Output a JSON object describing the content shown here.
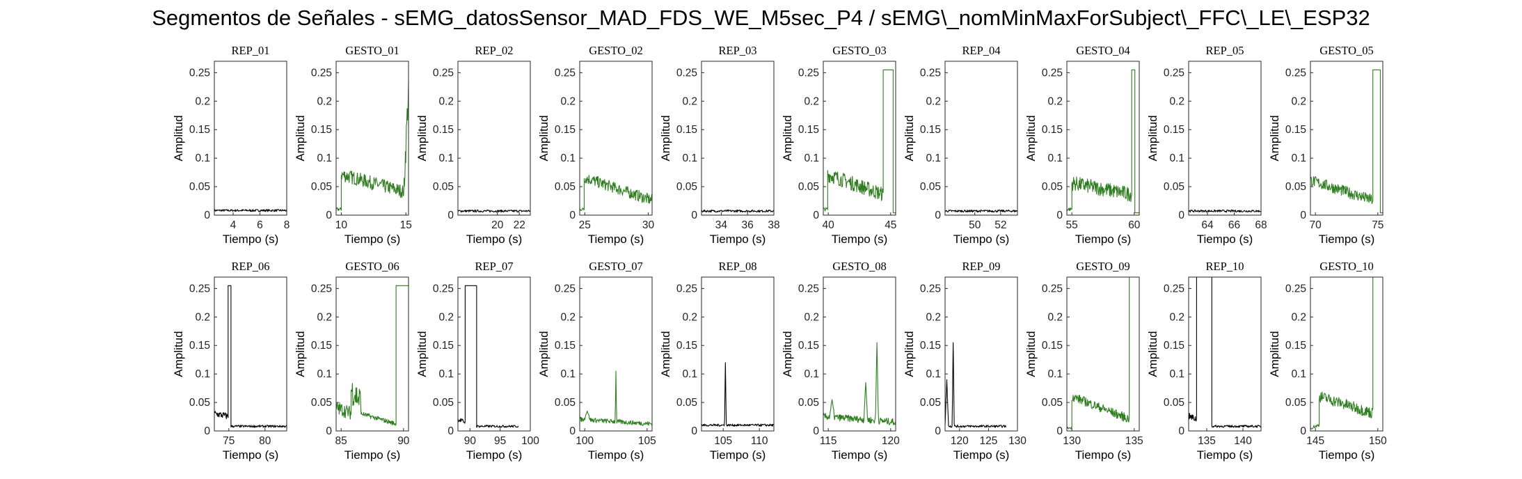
{
  "figure_title": "Segmentos de Señales - sEMG_datosSensor_MAD_FDS_WE_M5sec_P4 / sEMG\\_nomMinMaxForSubject\\_FFC\\_LE\\_ESP32",
  "colors": {
    "rep": "#000000",
    "gesto": "#2e7d1f",
    "axes": "#262626"
  },
  "chart_data": [
    {
      "type": "line",
      "title": "REP_01",
      "xlabel": "Tiempo (s)",
      "ylabel": "Amplitud",
      "xlim": [
        2.6,
        8
      ],
      "ylim": [
        0,
        0.27
      ],
      "xticks": [
        4,
        6,
        8
      ],
      "yticks": [
        0,
        0.05,
        0.1,
        0.15,
        0.2,
        0.25
      ],
      "color": "rep",
      "kind": "flat",
      "segments": [
        {
          "x0": 2.6,
          "x1": 8,
          "level": 0.008,
          "noise": 0.002
        }
      ]
    },
    {
      "type": "line",
      "title": "GESTO_01",
      "xlabel": "Tiempo (s)",
      "ylabel": "Amplitud",
      "xlim": [
        9.6,
        15.2
      ],
      "ylim": [
        0,
        0.27
      ],
      "xticks": [
        10,
        15
      ],
      "yticks": [
        0,
        0.05,
        0.1,
        0.15,
        0.2,
        0.25
      ],
      "color": "gesto",
      "kind": "emg",
      "segments": [
        {
          "x0": 9.6,
          "x1": 10.0,
          "level": 0.01,
          "noise": 0.003
        },
        {
          "x0": 10.0,
          "x1": 14.85,
          "start": 0.07,
          "end": 0.04,
          "noise": 0.012
        },
        {
          "x0": 14.85,
          "x1": 15.2,
          "start": 0.05,
          "end": 0.22,
          "noise": 0.03
        }
      ]
    },
    {
      "type": "line",
      "title": "REP_02",
      "xlabel": "Tiempo (s)",
      "ylabel": "Amplitud",
      "xlim": [
        16.4,
        23
      ],
      "ylim": [
        0,
        0.27
      ],
      "xticks": [
        20,
        22
      ],
      "yticks": [
        0,
        0.05,
        0.1,
        0.15,
        0.2,
        0.25
      ],
      "color": "rep",
      "kind": "flat",
      "segments": [
        {
          "x0": 16.4,
          "x1": 23,
          "level": 0.007,
          "noise": 0.002
        }
      ]
    },
    {
      "type": "line",
      "title": "GESTO_02",
      "xlabel": "Tiempo (s)",
      "ylabel": "Amplitud",
      "xlim": [
        24.6,
        30.3
      ],
      "ylim": [
        0,
        0.27
      ],
      "xticks": [
        25,
        30
      ],
      "yticks": [
        0,
        0.05,
        0.1,
        0.15,
        0.2,
        0.25
      ],
      "color": "gesto",
      "kind": "emg",
      "segments": [
        {
          "x0": 24.6,
          "x1": 24.95,
          "level": 0.01,
          "noise": 0.003
        },
        {
          "x0": 24.95,
          "x1": 30.3,
          "start": 0.065,
          "end": 0.025,
          "noise": 0.01
        }
      ]
    },
    {
      "type": "line",
      "title": "REP_03",
      "xlabel": "Tiempo (s)",
      "ylabel": "Amplitud",
      "xlim": [
        32.5,
        38
      ],
      "ylim": [
        0,
        0.27
      ],
      "xticks": [
        34,
        36,
        38
      ],
      "yticks": [
        0,
        0.05,
        0.1,
        0.15,
        0.2,
        0.25
      ],
      "color": "rep",
      "kind": "flat",
      "segments": [
        {
          "x0": 32.5,
          "x1": 38,
          "level": 0.007,
          "noise": 0.002
        }
      ]
    },
    {
      "type": "line",
      "title": "GESTO_03",
      "xlabel": "Tiempo (s)",
      "ylabel": "Amplitud",
      "xlim": [
        39.6,
        45.4
      ],
      "ylim": [
        0,
        0.27
      ],
      "xticks": [
        40,
        45
      ],
      "yticks": [
        0,
        0.05,
        0.1,
        0.15,
        0.2,
        0.25
      ],
      "color": "gesto",
      "kind": "emg",
      "segments": [
        {
          "x0": 39.6,
          "x1": 39.95,
          "level": 0.01,
          "noise": 0.003
        },
        {
          "x0": 39.95,
          "x1": 44.4,
          "start": 0.07,
          "end": 0.035,
          "noise": 0.013
        },
        {
          "x0": 44.4,
          "x1": 45.2,
          "level": 0.255,
          "noise": 0
        },
        {
          "x0": 45.2,
          "x1": 45.4,
          "level": 0.004,
          "noise": 0
        }
      ]
    },
    {
      "type": "line",
      "title": "REP_04",
      "xlabel": "Tiempo (s)",
      "ylabel": "Amplitud",
      "xlim": [
        47.7,
        53.3
      ],
      "ylim": [
        0,
        0.27
      ],
      "xticks": [
        50,
        52
      ],
      "yticks": [
        0,
        0.05,
        0.1,
        0.15,
        0.2,
        0.25
      ],
      "color": "rep",
      "kind": "flat",
      "segments": [
        {
          "x0": 47.7,
          "x1": 53.3,
          "level": 0.007,
          "noise": 0.002
        }
      ]
    },
    {
      "type": "line",
      "title": "GESTO_04",
      "xlabel": "Tiempo (s)",
      "ylabel": "Amplitud",
      "xlim": [
        54.6,
        60.4
      ],
      "ylim": [
        0,
        0.27
      ],
      "xticks": [
        55,
        60
      ],
      "yticks": [
        0,
        0.05,
        0.1,
        0.15,
        0.2,
        0.25
      ],
      "color": "gesto",
      "kind": "emg",
      "segments": [
        {
          "x0": 54.6,
          "x1": 55.0,
          "level": 0.01,
          "noise": 0.003
        },
        {
          "x0": 55.0,
          "x1": 59.8,
          "start": 0.055,
          "end": 0.035,
          "noise": 0.013
        },
        {
          "x0": 59.8,
          "x1": 60.05,
          "level": 0.255,
          "noise": 0
        },
        {
          "x0": 60.05,
          "x1": 60.4,
          "level": 0.004,
          "noise": 0
        }
      ]
    },
    {
      "type": "line",
      "title": "REP_05",
      "xlabel": "Tiempo (s)",
      "ylabel": "Amplitud",
      "xlim": [
        62.6,
        68
      ],
      "ylim": [
        0,
        0.27
      ],
      "xticks": [
        64,
        66,
        68
      ],
      "yticks": [
        0,
        0.05,
        0.1,
        0.15,
        0.2,
        0.25
      ],
      "color": "rep",
      "kind": "flat",
      "segments": [
        {
          "x0": 62.6,
          "x1": 68,
          "level": 0.007,
          "noise": 0.002
        }
      ]
    },
    {
      "type": "line",
      "title": "GESTO_05",
      "xlabel": "Tiempo (s)",
      "ylabel": "Amplitud",
      "xlim": [
        69.6,
        75.4
      ],
      "ylim": [
        0,
        0.27
      ],
      "xticks": [
        70,
        75
      ],
      "yticks": [
        0,
        0.05,
        0.1,
        0.15,
        0.2,
        0.25
      ],
      "color": "gesto",
      "kind": "emg",
      "segments": [
        {
          "x0": 69.6,
          "x1": 74.6,
          "start": 0.06,
          "end": 0.025,
          "noise": 0.01
        },
        {
          "x0": 74.6,
          "x1": 75.2,
          "level": 0.255,
          "noise": 0
        },
        {
          "x0": 75.2,
          "x1": 75.4,
          "level": 0.004,
          "noise": 0
        }
      ]
    },
    {
      "type": "line",
      "title": "REP_06",
      "xlabel": "Tiempo (s)",
      "ylabel": "Amplitud",
      "xlim": [
        73,
        83
      ],
      "ylim": [
        0,
        0.27
      ],
      "xticks": [
        75,
        80
      ],
      "yticks": [
        0,
        0.05,
        0.1,
        0.15,
        0.2,
        0.25
      ],
      "color": "rep",
      "kind": "emg",
      "segments": [
        {
          "x0": 73,
          "x1": 74.9,
          "start": 0.03,
          "end": 0.025,
          "noise": 0.006
        },
        {
          "x0": 74.9,
          "x1": 75.3,
          "level": 0.255,
          "noise": 0
        },
        {
          "x0": 75.3,
          "x1": 83,
          "level": 0.008,
          "noise": 0.002
        }
      ]
    },
    {
      "type": "line",
      "title": "GESTO_06",
      "xlabel": "Tiempo (s)",
      "ylabel": "Amplitud",
      "xlim": [
        84.6,
        90.4
      ],
      "ylim": [
        0,
        0.27
      ],
      "xticks": [
        85,
        90
      ],
      "yticks": [
        0,
        0.05,
        0.1,
        0.15,
        0.2,
        0.25
      ],
      "color": "gesto",
      "kind": "emg",
      "segments": [
        {
          "x0": 84.6,
          "x1": 85.8,
          "start": 0.04,
          "end": 0.03,
          "noise": 0.012
        },
        {
          "x0": 85.8,
          "x1": 86.6,
          "start": 0.07,
          "end": 0.05,
          "noise": 0.025
        },
        {
          "x0": 86.6,
          "x1": 89.4,
          "start": 0.03,
          "end": 0.012,
          "noise": 0.004
        },
        {
          "x0": 89.4,
          "x1": 90.4,
          "level": 0.255,
          "noise": 0
        }
      ]
    },
    {
      "type": "line",
      "title": "REP_07",
      "xlabel": "Tiempo (s)",
      "ylabel": "Amplitud",
      "xlim": [
        88,
        100
      ],
      "ylim": [
        0,
        0.27
      ],
      "xticks": [
        90,
        95,
        100
      ],
      "yticks": [
        0,
        0.05,
        0.1,
        0.15,
        0.2,
        0.25
      ],
      "color": "rep",
      "kind": "emg",
      "segments": [
        {
          "x0": 88,
          "x1": 89.2,
          "start": 0.02,
          "end": 0.015,
          "noise": 0.004
        },
        {
          "x0": 89.2,
          "x1": 91.1,
          "level": 0.255,
          "noise": 0
        },
        {
          "x0": 91.1,
          "x1": 98,
          "level": 0.008,
          "noise": 0.002
        }
      ]
    },
    {
      "type": "line",
      "title": "GESTO_07",
      "xlabel": "Tiempo (s)",
      "ylabel": "Amplitud",
      "xlim": [
        99.6,
        105.4
      ],
      "ylim": [
        0,
        0.27
      ],
      "xticks": [
        100,
        105
      ],
      "yticks": [
        0,
        0.05,
        0.1,
        0.15,
        0.2,
        0.25
      ],
      "color": "gesto",
      "kind": "emg",
      "segments": [
        {
          "x0": 99.6,
          "x1": 105.4,
          "start": 0.02,
          "end": 0.012,
          "noise": 0.004
        }
      ],
      "spikes": [
        {
          "x": 100.2,
          "y": 0.035,
          "w": 0.25
        },
        {
          "x": 102.5,
          "y": 0.105,
          "w": 0.06
        }
      ]
    },
    {
      "type": "line",
      "title": "REP_08",
      "xlabel": "Tiempo (s)",
      "ylabel": "Amplitud",
      "xlim": [
        102,
        112
      ],
      "ylim": [
        0,
        0.27
      ],
      "xticks": [
        105,
        110
      ],
      "yticks": [
        0,
        0.05,
        0.1,
        0.15,
        0.2,
        0.25
      ],
      "color": "rep",
      "kind": "emg",
      "segments": [
        {
          "x0": 102,
          "x1": 112,
          "level": 0.01,
          "noise": 0.002
        }
      ],
      "spikes": [
        {
          "x": 105.3,
          "y": 0.12,
          "w": 0.12
        }
      ]
    },
    {
      "type": "line",
      "title": "GESTO_08",
      "xlabel": "Tiempo (s)",
      "ylabel": "Amplitud",
      "xlim": [
        114.6,
        120.4
      ],
      "ylim": [
        0,
        0.27
      ],
      "xticks": [
        115,
        120
      ],
      "yticks": [
        0,
        0.05,
        0.1,
        0.15,
        0.2,
        0.25
      ],
      "color": "gesto",
      "kind": "emg",
      "segments": [
        {
          "x0": 114.6,
          "x1": 120.4,
          "start": 0.025,
          "end": 0.015,
          "noise": 0.006
        }
      ],
      "spikes": [
        {
          "x": 115.3,
          "y": 0.055,
          "w": 0.2
        },
        {
          "x": 118.0,
          "y": 0.085,
          "w": 0.15
        },
        {
          "x": 118.9,
          "y": 0.155,
          "w": 0.12
        }
      ]
    },
    {
      "type": "line",
      "title": "REP_09",
      "xlabel": "Tiempo (s)",
      "ylabel": "Amplitud",
      "xlim": [
        117.5,
        130
      ],
      "ylim": [
        0,
        0.27
      ],
      "xticks": [
        120,
        125,
        130
      ],
      "yticks": [
        0,
        0.05,
        0.1,
        0.15,
        0.2,
        0.25
      ],
      "color": "rep",
      "kind": "emg",
      "segments": [
        {
          "x0": 117.5,
          "x1": 128,
          "level": 0.008,
          "noise": 0.002
        }
      ],
      "spikes": [
        {
          "x": 117.8,
          "y": 0.09,
          "w": 0.3
        },
        {
          "x": 118.9,
          "y": 0.155,
          "w": 0.18
        }
      ]
    },
    {
      "type": "line",
      "title": "GESTO_09",
      "xlabel": "Tiempo (s)",
      "ylabel": "Amplitud",
      "xlim": [
        129.6,
        135.4
      ],
      "ylim": [
        0,
        0.27
      ],
      "xticks": [
        130,
        135
      ],
      "yticks": [
        0,
        0.05,
        0.1,
        0.15,
        0.2,
        0.25
      ],
      "color": "gesto",
      "kind": "emg",
      "segments": [
        {
          "x0": 129.6,
          "x1": 130.0,
          "level": 0.005,
          "noise": 0.002
        },
        {
          "x0": 130.0,
          "x1": 134.6,
          "start": 0.06,
          "end": 0.02,
          "noise": 0.008
        },
        {
          "x0": 134.6,
          "x1": 135.4,
          "level": 0.27,
          "noise": 0
        }
      ]
    },
    {
      "type": "line",
      "title": "REP_10",
      "xlabel": "Tiempo (s)",
      "ylabel": "Amplitud",
      "xlim": [
        132.5,
        142.5
      ],
      "ylim": [
        0,
        0.27
      ],
      "xticks": [
        135,
        140
      ],
      "yticks": [
        0,
        0.05,
        0.1,
        0.15,
        0.2,
        0.25
      ],
      "color": "rep",
      "kind": "emg",
      "segments": [
        {
          "x0": 132.5,
          "x1": 133.6,
          "start": 0.025,
          "end": 0.02,
          "noise": 0.006
        },
        {
          "x0": 133.6,
          "x1": 135.7,
          "level": 0.27,
          "noise": 0
        },
        {
          "x0": 135.7,
          "x1": 142.5,
          "level": 0.008,
          "noise": 0.002
        }
      ]
    },
    {
      "type": "line",
      "title": "GESTO_10",
      "xlabel": "Tiempo (s)",
      "ylabel": "Amplitud",
      "xlim": [
        144.6,
        150.4
      ],
      "ylim": [
        0,
        0.27
      ],
      "xticks": [
        145,
        150
      ],
      "yticks": [
        0,
        0.05,
        0.1,
        0.15,
        0.2,
        0.25
      ],
      "color": "gesto",
      "kind": "emg",
      "segments": [
        {
          "x0": 144.6,
          "x1": 145.3,
          "start": 0.005,
          "end": 0.01,
          "noise": 0.003
        },
        {
          "x0": 145.3,
          "x1": 149.6,
          "start": 0.06,
          "end": 0.03,
          "noise": 0.01
        },
        {
          "x0": 149.6,
          "x1": 150.4,
          "level": 0.27,
          "noise": 0
        }
      ]
    }
  ]
}
